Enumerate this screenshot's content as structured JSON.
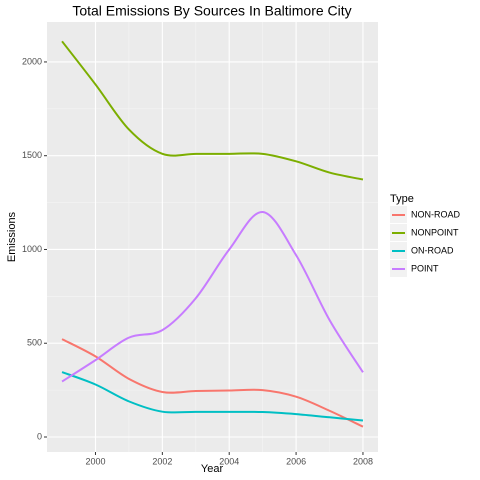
{
  "chart_data": {
    "type": "line",
    "title": "Total Emissions By Sources In Baltimore City",
    "x_label": "Year",
    "y_label": "Emissions",
    "legend_title": "Type",
    "x": [
      1999,
      2000,
      2001,
      2002,
      2003,
      2004,
      2005,
      2006,
      2007,
      2008
    ],
    "series": [
      {
        "name": "NON-ROAD",
        "color": "#F8766D",
        "values": [
          522,
          430,
          310,
          240,
          245,
          248,
          250,
          215,
          140,
          55
        ]
      },
      {
        "name": "NONPOINT",
        "color": "#7CAE00",
        "values": [
          2110,
          1880,
          1640,
          1510,
          1510,
          1510,
          1510,
          1470,
          1410,
          1373
        ]
      },
      {
        "name": "ON-ROAD",
        "color": "#00BFC4",
        "values": [
          346,
          280,
          190,
          135,
          134,
          134,
          133,
          122,
          105,
          88
        ]
      },
      {
        "name": "POINT",
        "color": "#C77CFF",
        "values": [
          296,
          410,
          530,
          570,
          740,
          1000,
          1200,
          970,
          624,
          345
        ]
      }
    ],
    "xlim": [
      1998.55,
      2008.45
    ],
    "xticks": [
      2000,
      2002,
      2004,
      2006,
      2008
    ],
    "ylim": [
      -80,
      2213
    ],
    "yticks": [
      0,
      500,
      1000,
      1500,
      2000
    ],
    "grid": true,
    "legend": "right"
  }
}
